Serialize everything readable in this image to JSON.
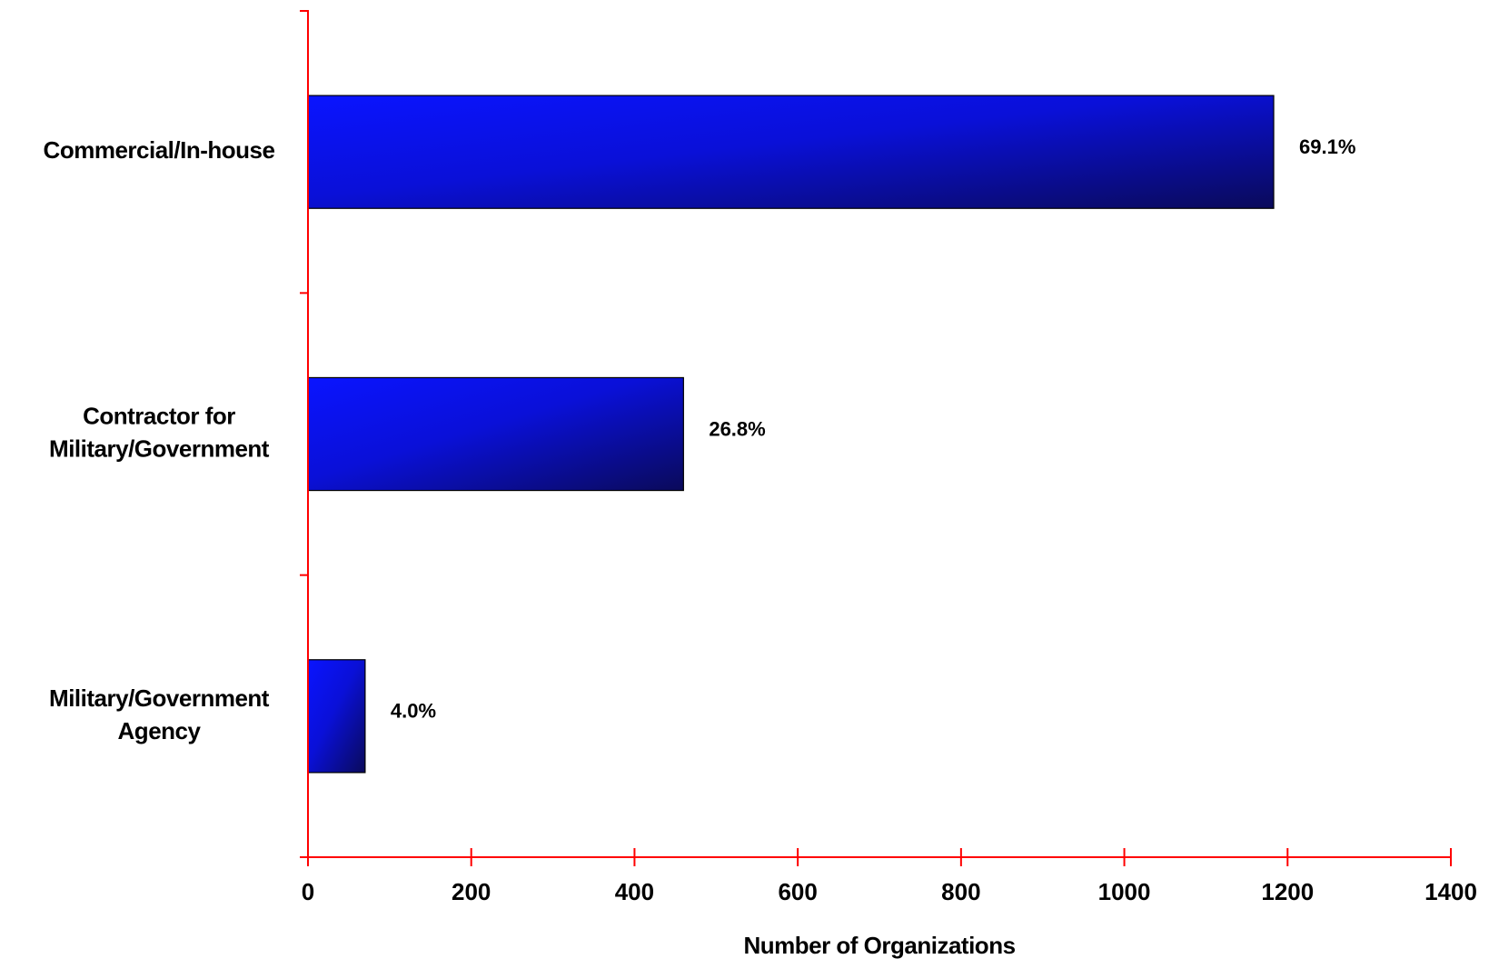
{
  "chart_data": {
    "type": "bar",
    "orientation": "horizontal",
    "categories": [
      [
        "Commercial/In-house"
      ],
      [
        "Contractor for",
        "Military/Government"
      ],
      [
        "Military/Government",
        "Agency"
      ]
    ],
    "values": [
      1183,
      460,
      70
    ],
    "data_labels": [
      "69.1%",
      "26.8%",
      "4.0%"
    ],
    "xlabel": "Number of Organizations",
    "ylabel": "",
    "title": "",
    "xlim": [
      0,
      1400
    ],
    "xticks": [
      0,
      200,
      400,
      600,
      800,
      1000,
      1200,
      1400
    ],
    "grid": false,
    "legend": "none",
    "colors": {
      "bar_light": "#0a14ff",
      "bar_dark": "#0a0a5a",
      "axis": "#ff0000",
      "bar_edge": "#000000"
    }
  }
}
